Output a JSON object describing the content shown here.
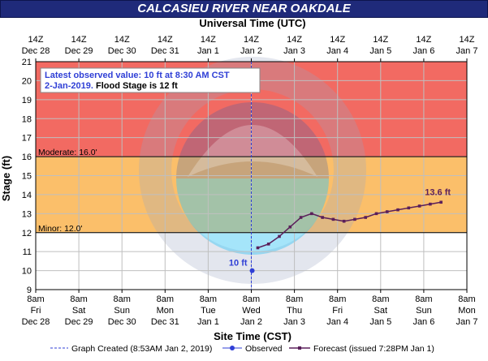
{
  "title": "CALCASIEU RIVER NEAR OAKDALE",
  "top_axis_title": "Universal Time (UTC)",
  "bottom_axis_title": "Site Time (CST)",
  "annotation": {
    "line1": "Latest observed value: 10 ft at 8:30 AM CST",
    "line2a": "2-Jan-2019.",
    "line2b": "Flood Stage is 12 ft"
  },
  "colors": {
    "major_band": "#f26a62",
    "moderate_band": "#fbbf6a",
    "observed": "#2f3fd6",
    "forecast": "#5a1f5a",
    "title_bg": "#1f2a7a"
  },
  "chart_data": {
    "type": "line",
    "ylabel": "Stage (ft)",
    "ylim": [
      9,
      21
    ],
    "yticks": [
      9,
      10,
      11,
      12,
      13,
      14,
      15,
      16,
      17,
      18,
      19,
      20,
      21
    ],
    "xlim_days": [
      0,
      10
    ],
    "top_ticks": [
      {
        "l1": "14Z",
        "l2": "Dec 28"
      },
      {
        "l1": "14Z",
        "l2": "Dec 29"
      },
      {
        "l1": "14Z",
        "l2": "Dec 30"
      },
      {
        "l1": "14Z",
        "l2": "Dec 31"
      },
      {
        "l1": "14Z",
        "l2": "Jan 1"
      },
      {
        "l1": "14Z",
        "l2": "Jan 2"
      },
      {
        "l1": "14Z",
        "l2": "Jan 3"
      },
      {
        "l1": "14Z",
        "l2": "Jan 4"
      },
      {
        "l1": "14Z",
        "l2": "Jan 5"
      },
      {
        "l1": "14Z",
        "l2": "Jan 6"
      },
      {
        "l1": "14Z",
        "l2": "Jan 7"
      }
    ],
    "bottom_ticks": [
      {
        "l1": "8am",
        "l2": "Fri",
        "l3": "Dec 28"
      },
      {
        "l1": "8am",
        "l2": "Sat",
        "l3": "Dec 29"
      },
      {
        "l1": "8am",
        "l2": "Sun",
        "l3": "Dec 30"
      },
      {
        "l1": "8am",
        "l2": "Mon",
        "l3": "Dec 31"
      },
      {
        "l1": "8am",
        "l2": "Tue",
        "l3": "Jan 1"
      },
      {
        "l1": "8am",
        "l2": "Wed",
        "l3": "Jan 2"
      },
      {
        "l1": "8am",
        "l2": "Thu",
        "l3": "Jan 3"
      },
      {
        "l1": "8am",
        "l2": "Fri",
        "l3": "Jan 4"
      },
      {
        "l1": "8am",
        "l2": "Sat",
        "l3": "Jan 5"
      },
      {
        "l1": "8am",
        "l2": "Sun",
        "l3": "Jan 6"
      },
      {
        "l1": "8am",
        "l2": "Mon",
        "l3": "Jan 7"
      }
    ],
    "bands": [
      {
        "name": "major",
        "from": 16,
        "to": 21
      },
      {
        "name": "moderate",
        "from": 12,
        "to": 16
      }
    ],
    "stage_labels": [
      {
        "text": "Moderate: 16.0'",
        "y": 16
      },
      {
        "text": "Minor: 12.0'",
        "y": 12
      }
    ],
    "graph_created_x": 5.0,
    "observed": {
      "name": "Observed",
      "points": [
        [
          5.02,
          10
        ]
      ],
      "label": "10 ft"
    },
    "forecast": {
      "name": "Forecast (issued 7:28PM Jan 1)",
      "points": [
        [
          5.15,
          11.2
        ],
        [
          5.4,
          11.4
        ],
        [
          5.65,
          11.8
        ],
        [
          5.9,
          12.3
        ],
        [
          6.15,
          12.8
        ],
        [
          6.4,
          13.0
        ],
        [
          6.65,
          12.8
        ],
        [
          6.9,
          12.7
        ],
        [
          7.15,
          12.6
        ],
        [
          7.4,
          12.7
        ],
        [
          7.65,
          12.8
        ],
        [
          7.9,
          13.0
        ],
        [
          8.15,
          13.1
        ],
        [
          8.4,
          13.2
        ],
        [
          8.65,
          13.3
        ],
        [
          8.9,
          13.4
        ],
        [
          9.15,
          13.5
        ],
        [
          9.4,
          13.6
        ]
      ],
      "label": "13.6 ft"
    },
    "legend": {
      "graph_created": "Graph Created (8:53AM Jan 2, 2019)",
      "observed": "Observed",
      "forecast": "Forecast (issued 7:28PM Jan 1)"
    }
  }
}
